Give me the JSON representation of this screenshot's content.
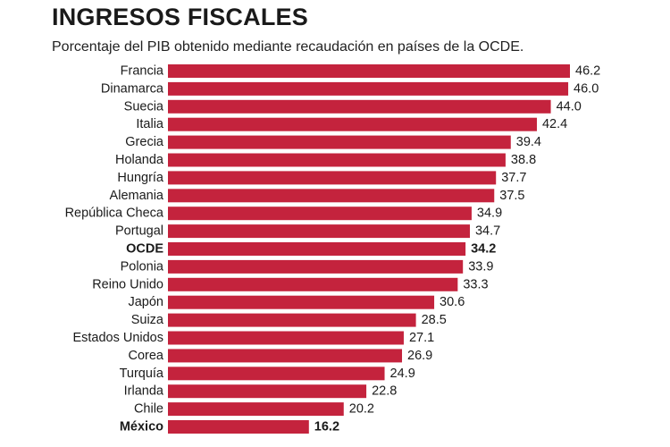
{
  "header": {
    "title": "INGRESOS FISCALES",
    "subtitle": "Porcentaje del PIB obtenido mediante recaudación en países de la OCDE."
  },
  "colors": {
    "bar": "#c4233d",
    "text": "#1a1a1a"
  },
  "chart_data": {
    "type": "bar",
    "orientation": "horizontal",
    "title": "INGRESOS FISCALES",
    "subtitle": "Porcentaje del PIB obtenido mediante recaudación en países de la OCDE.",
    "categories": [
      "Francia",
      "Dinamarca",
      "Suecia",
      "Italia",
      "Grecia",
      "Holanda",
      "Hungría",
      "Alemania",
      "República Checa",
      "Portugal",
      "OCDE",
      "Polonia",
      "Reino Unido",
      "Japón",
      "Suiza",
      "Estados Unidos",
      "Corea",
      "Turquía",
      "Irlanda",
      "Chile",
      "México"
    ],
    "values": [
      46.2,
      46.0,
      44.0,
      42.4,
      39.4,
      38.8,
      37.7,
      37.5,
      34.9,
      34.7,
      34.2,
      33.9,
      33.3,
      30.6,
      28.5,
      27.1,
      26.9,
      24.9,
      22.8,
      20.2,
      16.2
    ],
    "value_labels": [
      "46.2",
      "46.0",
      "44.0",
      "42.4",
      "39.4",
      "38.8",
      "37.7",
      "37.5",
      "34.9",
      "34.7",
      "34.2",
      "33.9",
      "33.3",
      "30.6",
      "28.5",
      "27.1",
      "26.9",
      "24.9",
      "22.8",
      "20.2",
      "16.2"
    ],
    "highlighted": [
      "OCDE",
      "México"
    ],
    "xlim": [
      0,
      46.2
    ],
    "xlabel": "",
    "ylabel": "",
    "grid": false,
    "legend": "none"
  }
}
